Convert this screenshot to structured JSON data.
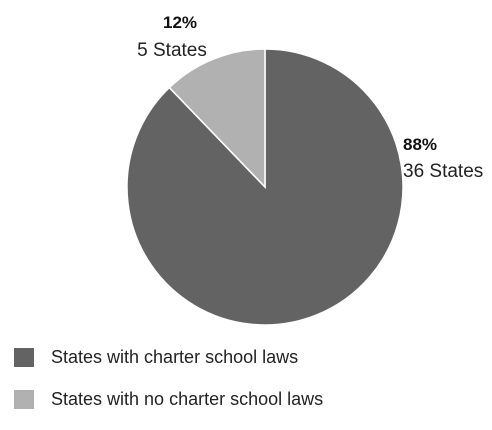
{
  "chart_data": {
    "type": "pie",
    "slices": [
      {
        "label": "States with charter school laws",
        "percent_label": "88%",
        "count_label": "36 States",
        "value": 36,
        "color": "#636363"
      },
      {
        "label": "States with no charter school laws",
        "percent_label": "12%",
        "count_label": "5 States",
        "value": 5,
        "color": "#b1b1b1"
      }
    ],
    "legend_position": "bottom-left",
    "slice_border_color": "#ffffff"
  }
}
